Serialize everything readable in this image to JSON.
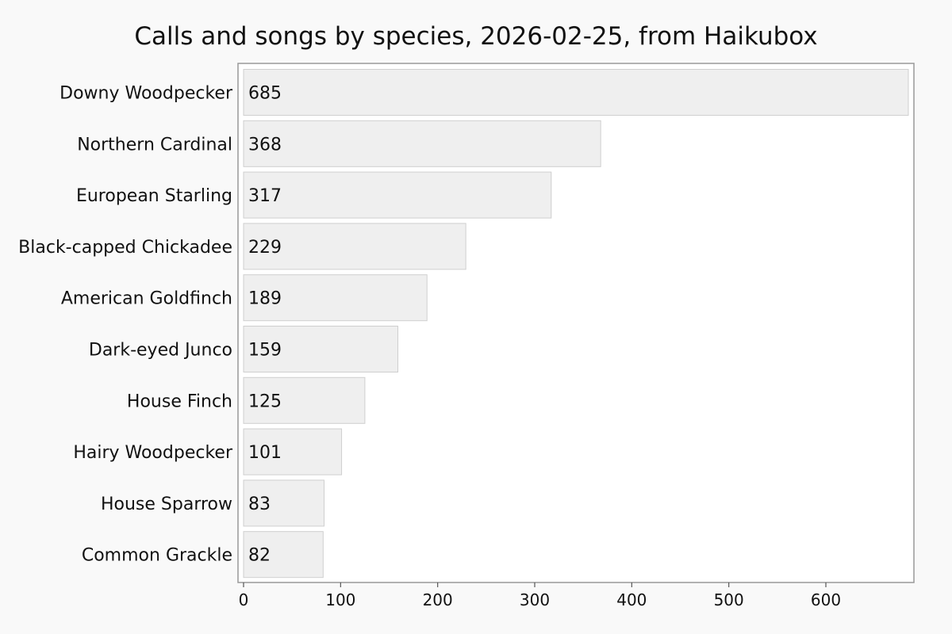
{
  "chart_data": {
    "type": "bar",
    "orientation": "horizontal",
    "title": "Calls and songs by species, 2026-02-25, from Haikubox",
    "xlabel": "",
    "ylabel": "",
    "categories": [
      "Downy Woodpecker",
      "Northern Cardinal",
      "European Starling",
      "Black-capped Chickadee",
      "American Goldfinch",
      "Dark-eyed Junco",
      "House Finch",
      "Hairy Woodpecker",
      "House Sparrow",
      "Common Grackle"
    ],
    "values": [
      685,
      368,
      317,
      229,
      189,
      159,
      125,
      101,
      83,
      82
    ],
    "xticks": [
      0,
      100,
      200,
      300,
      400,
      500,
      600
    ],
    "xlim": [
      0,
      690
    ],
    "grid": false,
    "legend": "none",
    "colors": {
      "bar_fill": "#efefef",
      "bar_stroke": "#cfcfcf",
      "plot_background": "#ffffff",
      "page_background": "#f9f9f9",
      "frame": "#999999"
    }
  }
}
